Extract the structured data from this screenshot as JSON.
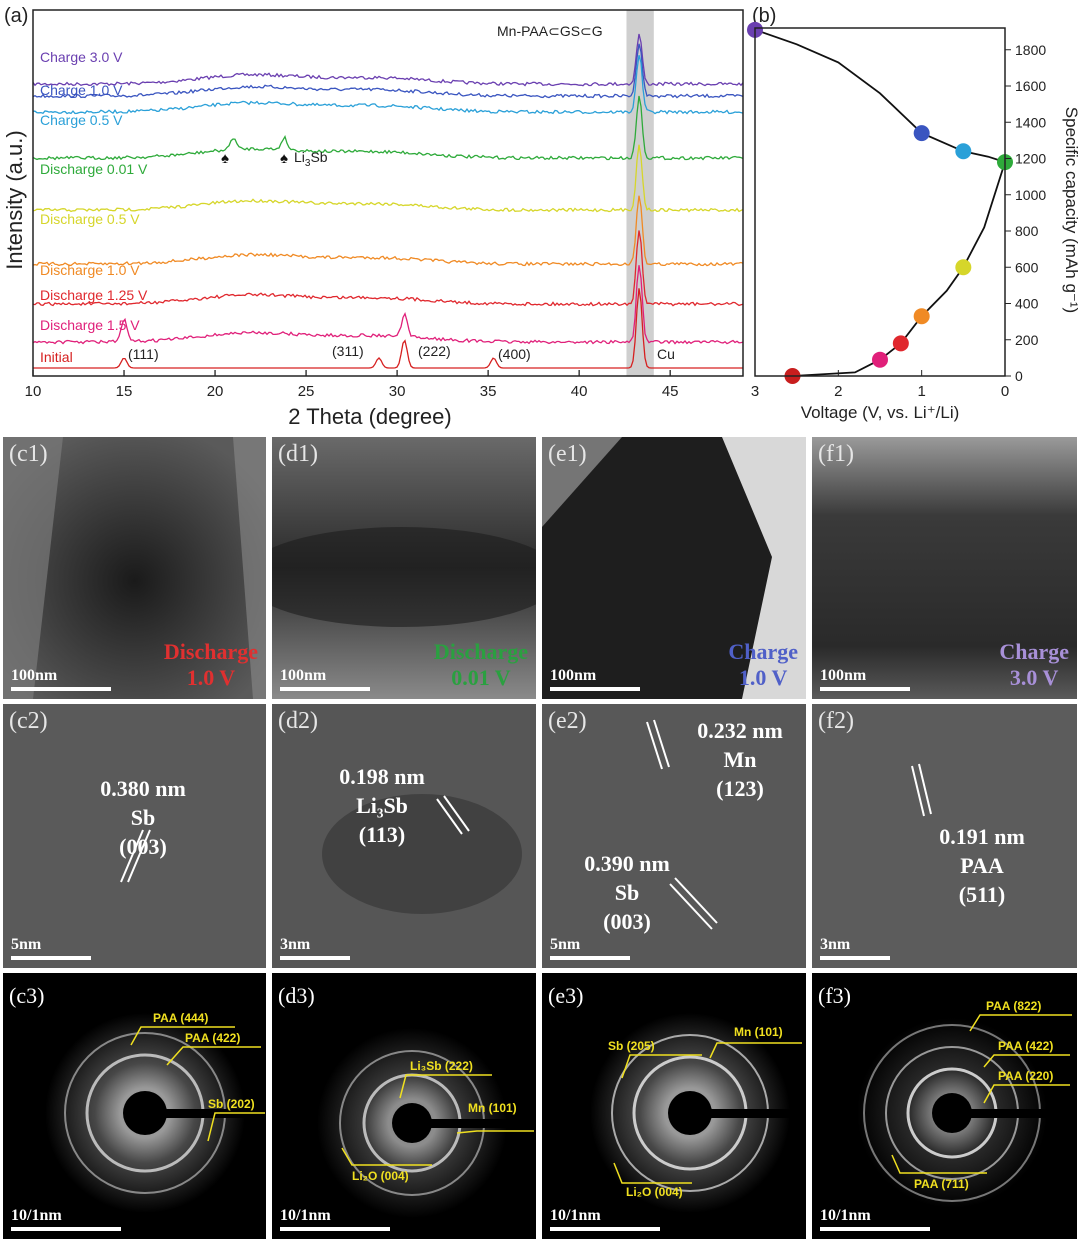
{
  "figure": {
    "panel_a": {
      "label": "(a)",
      "xlabel": "2 Theta (degree)",
      "ylabel": "Intensity (a.u.)",
      "xticks": [
        "10",
        "15",
        "20",
        "25",
        "30",
        "35",
        "40",
        "45"
      ],
      "series_labels": [
        {
          "text": "Charge 3.0 V",
          "color": "#6a3fb0"
        },
        {
          "text": "Charge 1.0 V",
          "color": "#3a55c0"
        },
        {
          "text": "Charge 0.5 V",
          "color": "#2aa0d8"
        },
        {
          "text": "Discharge 0.01 V",
          "color": "#2eaa3a"
        },
        {
          "text": "Discharge 0.5 V",
          "color": "#d6d62a"
        },
        {
          "text": "Discharge 1.0 V",
          "color": "#f08a24"
        },
        {
          "text": "Discharge 1.25 V",
          "color": "#e0282e"
        },
        {
          "text": "Discharge 1.5 V",
          "color": "#e0207a"
        },
        {
          "text": "Initial",
          "color": "#d62020"
        }
      ],
      "annotations": {
        "sample": "Mn-PAA⊂GS⊂G",
        "li3sb_pre": "Li",
        "li3sb_sub": "3",
        "li3sb_post": "Sb",
        "cu": "Cu",
        "p111": "(111)",
        "p311": "(311)",
        "p222": "(222)",
        "p400": "(400)",
        "spade": "♠"
      }
    },
    "panel_b": {
      "label": "(b)",
      "xlabel": "Voltage (V, vs. Li⁺/Li)",
      "ylabel": "Specific capacity (mAh g⁻¹)",
      "xticks": [
        "3",
        "2",
        "1",
        "0"
      ],
      "yticks": [
        "0",
        "200",
        "400",
        "600",
        "800",
        "1000",
        "1200",
        "1400",
        "1600",
        "1800"
      ]
    },
    "row1": [
      {
        "label": "(c1)",
        "caption_1": "Discharge",
        "caption_2": "1.0 V",
        "caption_color": "#e03030",
        "scale": "100nm"
      },
      {
        "label": "(d1)",
        "caption_1": "Discharge",
        "caption_2": "0.01 V",
        "caption_color": "#2aa040",
        "scale": "100nm"
      },
      {
        "label": "(e1)",
        "caption_1": "Charge",
        "caption_2": "1.0 V",
        "caption_color": "#5060c8",
        "scale": "100nm"
      },
      {
        "label": "(f1)",
        "caption_1": "Charge",
        "caption_2": "3.0 V",
        "caption_color": "#a890d8",
        "scale": "100nm"
      }
    ],
    "row2": [
      {
        "label": "(c2)",
        "scale": "5nm",
        "d1_value": "0.380 nm",
        "d1_phase": "Sb",
        "d1_plane": "(003)"
      },
      {
        "label": "(d2)",
        "scale": "3nm",
        "d1_value": "0.198 nm",
        "d1_phase": "Li₃Sb",
        "d1_plane": "(113)"
      },
      {
        "label": "(e2)",
        "scale": "5nm",
        "d1_value": "0.232 nm",
        "d1_phase": "Mn",
        "d1_plane": "(123)",
        "d2_value": "0.390 nm",
        "d2_phase": "Sb",
        "d2_plane": "(003)"
      },
      {
        "label": "(f2)",
        "scale": "3nm",
        "d1_value": "0.191 nm",
        "d1_phase": "PAA",
        "d1_plane": "(511)"
      }
    ],
    "row3": [
      {
        "label": "(c3)",
        "scale": "10/1nm",
        "rings": [
          "PAA (444)",
          "PAA (422)",
          "Sb (202)"
        ]
      },
      {
        "label": "(d3)",
        "scale": "10/1nm",
        "rings": [
          "Li₃Sb (222)",
          "Mn (101)",
          "Li₂O (004)"
        ]
      },
      {
        "label": "(e3)",
        "scale": "10/1nm",
        "rings": [
          "Sb (205)",
          "Mn (101)",
          "Li₂O (004)"
        ]
      },
      {
        "label": "(f3)",
        "scale": "10/1nm",
        "rings": [
          "PAA (822)",
          "PAA (422)",
          "PAA (220)",
          "PAA (711)"
        ]
      }
    ]
  },
  "chart_data": [
    {
      "type": "line",
      "title": "",
      "xlabel": "2 Theta (degree)",
      "ylabel": "Intensity (a.u.)",
      "xlim": [
        10,
        49
      ],
      "series": [
        {
          "name": "Initial",
          "peaks_deg": [
            15.0,
            29.0,
            30.4,
            35.3,
            43.3
          ]
        },
        {
          "name": "Discharge 1.5 V",
          "peaks_deg": [
            15.0,
            30.4,
            43.3
          ]
        },
        {
          "name": "Discharge 1.25 V",
          "peaks_deg": [
            43.3
          ]
        },
        {
          "name": "Discharge 1.0 V",
          "peaks_deg": [
            43.3
          ]
        },
        {
          "name": "Discharge 0.5 V",
          "peaks_deg": [
            43.3
          ]
        },
        {
          "name": "Discharge 0.01 V",
          "peaks_deg": [
            21.0,
            23.8,
            43.3
          ]
        },
        {
          "name": "Charge 0.5 V",
          "peaks_deg": [
            43.3
          ]
        },
        {
          "name": "Charge 1.0 V",
          "peaks_deg": [
            43.3
          ]
        },
        {
          "name": "Charge 3.0 V",
          "peaks_deg": [
            43.3
          ]
        }
      ],
      "highlight_band_deg": [
        42.6,
        44.1
      ]
    },
    {
      "type": "line",
      "title": "",
      "xlabel": "Voltage (V, vs. Li⁺/Li)",
      "ylabel": "Specific capacity (mAh g⁻¹)",
      "xlim": [
        3,
        0
      ],
      "ylim": [
        0,
        1920
      ],
      "curve": [
        {
          "x": 2.55,
          "y": 0
        },
        {
          "x": 1.8,
          "y": 20
        },
        {
          "x": 1.5,
          "y": 90
        },
        {
          "x": 1.25,
          "y": 180
        },
        {
          "x": 1.0,
          "y": 330
        },
        {
          "x": 0.7,
          "y": 470
        },
        {
          "x": 0.5,
          "y": 600
        },
        {
          "x": 0.25,
          "y": 820
        },
        {
          "x": 0.0,
          "y": 1180
        },
        {
          "x": 0.2,
          "y": 1210
        },
        {
          "x": 0.5,
          "y": 1240
        },
        {
          "x": 1.0,
          "y": 1340
        },
        {
          "x": 1.5,
          "y": 1560
        },
        {
          "x": 2.0,
          "y": 1730
        },
        {
          "x": 2.5,
          "y": 1830
        },
        {
          "x": 3.0,
          "y": 1910
        }
      ],
      "points": [
        {
          "x": 2.55,
          "y": 0,
          "color": "#c81e1e"
        },
        {
          "x": 1.5,
          "y": 90,
          "color": "#e0207a"
        },
        {
          "x": 1.25,
          "y": 180,
          "color": "#e0282e"
        },
        {
          "x": 1.0,
          "y": 330,
          "color": "#f08a24"
        },
        {
          "x": 0.5,
          "y": 600,
          "color": "#d6d62a"
        },
        {
          "x": 0.0,
          "y": 1180,
          "color": "#2eaa3a"
        },
        {
          "x": 0.5,
          "y": 1240,
          "color": "#2aa0d8"
        },
        {
          "x": 1.0,
          "y": 1340,
          "color": "#3a55c0"
        },
        {
          "x": 3.0,
          "y": 1910,
          "color": "#6a3fb0"
        }
      ]
    }
  ]
}
